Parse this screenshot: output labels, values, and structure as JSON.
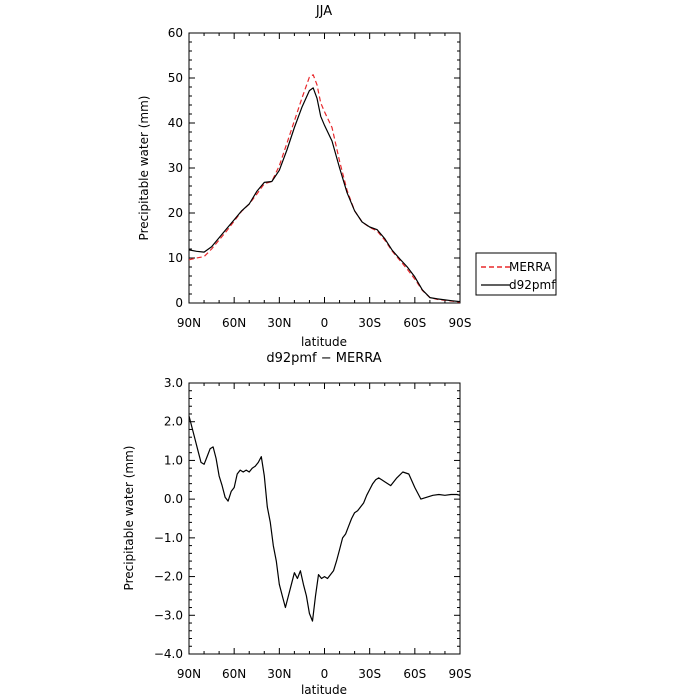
{
  "chart_data": [
    {
      "type": "line",
      "title": "JJA",
      "xlabel": "latitude",
      "ylabel": "Precipitable water (mm)",
      "xlim": [
        90,
        -90
      ],
      "ylim": [
        0,
        60
      ],
      "yticks": [
        0,
        10,
        20,
        30,
        40,
        50,
        60
      ],
      "ytick_labels": [
        "0",
        "10",
        "20",
        "30",
        "40",
        "50",
        "60"
      ],
      "xticks": [
        90,
        60,
        30,
        0,
        -30,
        -60,
        -90
      ],
      "xtick_labels": [
        "90N",
        "60N",
        "30N",
        "0",
        "30S",
        "60S",
        "90S"
      ],
      "grid": false,
      "legend": {
        "placement": "outside-right",
        "entries": [
          "MERRA",
          "d92pmf"
        ]
      },
      "series": [
        {
          "name": "MERRA",
          "color": "#e8282c",
          "dash": "dashed",
          "x": [
            90,
            85,
            80,
            75,
            70,
            65,
            60,
            55,
            50,
            45,
            40,
            35,
            30,
            25,
            20,
            15,
            10,
            7.5,
            5,
            2.5,
            0,
            -5,
            -10,
            -15,
            -20,
            -25,
            -30,
            -35,
            -40,
            -45,
            -50,
            -55,
            -60,
            -65,
            -70,
            -75,
            -80,
            -85,
            -90
          ],
          "y": [
            9.6,
            10.0,
            10.3,
            12.0,
            14.0,
            16.0,
            18.2,
            20.4,
            22.0,
            24.2,
            26.5,
            27.0,
            30.5,
            35.5,
            40.5,
            45.5,
            50.2,
            50.7,
            48.5,
            44.5,
            42.5,
            39.0,
            31.5,
            25.0,
            20.5,
            18.0,
            16.8,
            16.0,
            14.0,
            11.5,
            9.5,
            7.5,
            5.3,
            2.8,
            1.2,
            0.8,
            0.6,
            0.4,
            0.2
          ]
        },
        {
          "name": "d92pmf",
          "color": "#000000",
          "dash": "solid",
          "x": [
            90,
            85,
            80,
            75,
            70,
            65,
            60,
            55,
            50,
            45,
            40,
            35,
            30,
            25,
            20,
            15,
            10,
            7.5,
            5,
            2.5,
            0,
            -5,
            -10,
            -15,
            -20,
            -25,
            -30,
            -35,
            -40,
            -45,
            -50,
            -55,
            -60,
            -65,
            -70,
            -75,
            -80,
            -85,
            -90
          ],
          "y": [
            11.8,
            11.5,
            11.3,
            12.5,
            14.5,
            16.5,
            18.5,
            20.5,
            22.0,
            24.8,
            26.8,
            27.0,
            29.5,
            34.0,
            39.0,
            43.5,
            47.2,
            47.8,
            45.5,
            41.5,
            39.5,
            36.0,
            30.0,
            24.5,
            20.5,
            18.0,
            16.9,
            16.3,
            14.3,
            11.7,
            9.8,
            8.0,
            5.8,
            2.9,
            1.2,
            0.9,
            0.7,
            0.5,
            0.3
          ]
        }
      ]
    },
    {
      "type": "line",
      "title": "d92pmf − MERRA",
      "xlabel": "latitude",
      "ylabel": "Precipitable water (mm)",
      "xlim": [
        90,
        -90
      ],
      "ylim": [
        -4,
        3
      ],
      "yticks": [
        -4,
        -3,
        -2,
        -1,
        0,
        1,
        2,
        3
      ],
      "ytick_labels": [
        "−4.0",
        "−3.0",
        "−2.0",
        "−1.0",
        "0.0",
        "1.0",
        "2.0",
        "3.0"
      ],
      "xticks": [
        90,
        60,
        30,
        0,
        -30,
        -60,
        -90
      ],
      "xtick_labels": [
        "90N",
        "60N",
        "30N",
        "0",
        "30S",
        "60S",
        "90S"
      ],
      "grid": false,
      "series": [
        {
          "color": "#000000",
          "dash": "solid",
          "x": [
            90,
            88,
            86,
            84,
            82,
            80,
            78,
            76,
            74,
            72,
            70,
            68,
            66,
            64,
            62,
            60,
            58,
            56,
            54,
            52,
            50,
            48,
            46,
            44,
            42,
            40,
            38,
            36,
            34,
            32,
            30,
            28,
            26,
            24,
            22,
            20,
            18,
            16,
            14,
            12,
            10,
            8,
            6,
            4,
            2,
            0,
            -2,
            -4,
            -6,
            -8,
            -10,
            -12,
            -14,
            -16,
            -18,
            -20,
            -22,
            -24,
            -26,
            -28,
            -30,
            -32,
            -34,
            -36,
            -38,
            -40,
            -44,
            -48,
            -52,
            -56,
            -60,
            -64,
            -68,
            -72,
            -76,
            -80,
            -84,
            -88,
            -90
          ],
          "y": [
            2.15,
            1.85,
            1.55,
            1.25,
            0.95,
            0.9,
            1.1,
            1.3,
            1.35,
            1.05,
            0.6,
            0.35,
            0.05,
            -0.05,
            0.2,
            0.3,
            0.65,
            0.75,
            0.7,
            0.75,
            0.7,
            0.8,
            0.85,
            0.95,
            1.1,
            0.6,
            -0.2,
            -0.6,
            -1.2,
            -1.6,
            -2.2,
            -2.5,
            -2.8,
            -2.5,
            -2.2,
            -1.9,
            -2.05,
            -1.85,
            -2.2,
            -2.5,
            -2.95,
            -3.15,
            -2.5,
            -1.95,
            -2.05,
            -2.0,
            -2.05,
            -1.95,
            -1.85,
            -1.6,
            -1.3,
            -1.0,
            -0.9,
            -0.7,
            -0.5,
            -0.35,
            -0.3,
            -0.2,
            -0.1,
            0.1,
            0.25,
            0.4,
            0.5,
            0.55,
            0.5,
            0.45,
            0.35,
            0.55,
            0.7,
            0.65,
            0.3,
            0.0,
            0.05,
            0.1,
            0.12,
            0.1,
            0.12,
            0.12,
            0.1
          ]
        }
      ]
    }
  ]
}
